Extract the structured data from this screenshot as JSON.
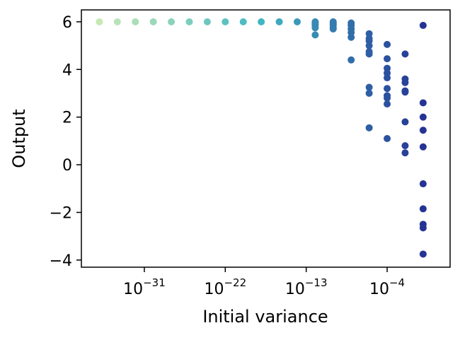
{
  "chart_data": {
    "type": "scatter",
    "xlabel": "Initial variance",
    "ylabel": "Output",
    "x_scale": "log",
    "xlim": [
      1e-38,
      1000.0
    ],
    "ylim": [
      -4.3,
      6.5
    ],
    "xticks": [
      {
        "value": 1e-31,
        "base": "10",
        "exp": "−31"
      },
      {
        "value": 1e-22,
        "base": "10",
        "exp": "−22"
      },
      {
        "value": 1e-13,
        "base": "10",
        "exp": "−13"
      },
      {
        "value": 0.0001,
        "base": "10",
        "exp": "−4"
      }
    ],
    "yticks": [
      {
        "value": 6,
        "label": "6"
      },
      {
        "value": 4,
        "label": "4"
      },
      {
        "value": 2,
        "label": "2"
      },
      {
        "value": 0,
        "label": "0"
      },
      {
        "value": -2,
        "label": "−2"
      },
      {
        "value": -4,
        "label": "−4"
      }
    ],
    "grid": false,
    "colormap": "YlGnBu",
    "colors": {
      "light": "#c7e9b4",
      "mid": "#41b6c4",
      "dark": "#253494"
    },
    "groups": [
      {
        "x": 1e-36,
        "y": [
          6.0
        ]
      },
      {
        "x": 1e-34,
        "y": [
          6.0
        ]
      },
      {
        "x": 1e-32,
        "y": [
          6.0
        ]
      },
      {
        "x": 1e-30,
        "y": [
          6.0
        ]
      },
      {
        "x": 1e-28,
        "y": [
          6.0
        ]
      },
      {
        "x": 1e-26,
        "y": [
          6.0
        ]
      },
      {
        "x": 1e-24,
        "y": [
          6.0
        ]
      },
      {
        "x": 1e-22,
        "y": [
          6.0
        ]
      },
      {
        "x": 1e-20,
        "y": [
          6.0
        ]
      },
      {
        "x": 1e-18,
        "y": [
          6.0
        ]
      },
      {
        "x": 1e-16,
        "y": [
          6.0
        ]
      },
      {
        "x": 1e-14,
        "y": [
          6.0
        ]
      },
      {
        "x": 1e-12,
        "y": [
          6.0,
          5.95,
          5.9,
          5.85,
          5.75,
          5.45
        ]
      },
      {
        "x": 1e-10,
        "y": [
          6.0,
          5.95,
          5.9,
          5.85,
          5.75,
          5.7
        ]
      },
      {
        "x": 1e-08,
        "y": [
          5.95,
          5.85,
          5.7,
          5.55,
          5.35,
          4.4
        ]
      },
      {
        "x": 1e-06,
        "y": [
          5.5,
          5.3,
          5.2,
          5.0,
          4.75,
          4.65,
          3.25,
          3.0,
          1.55
        ]
      },
      {
        "x": 0.0001,
        "y": [
          5.05,
          4.45,
          4.05,
          3.85,
          3.65,
          3.2,
          2.9,
          2.8,
          2.55,
          1.1
        ]
      },
      {
        "x": 0.01,
        "y": [
          4.65,
          3.6,
          3.45,
          3.1,
          3.05,
          1.8,
          0.8,
          0.5
        ]
      },
      {
        "x": 1,
        "y": [
          5.85,
          2.6,
          2.0,
          1.45,
          0.75,
          -0.8,
          -1.85,
          -2.5,
          -2.65,
          -3.75
        ]
      }
    ]
  }
}
